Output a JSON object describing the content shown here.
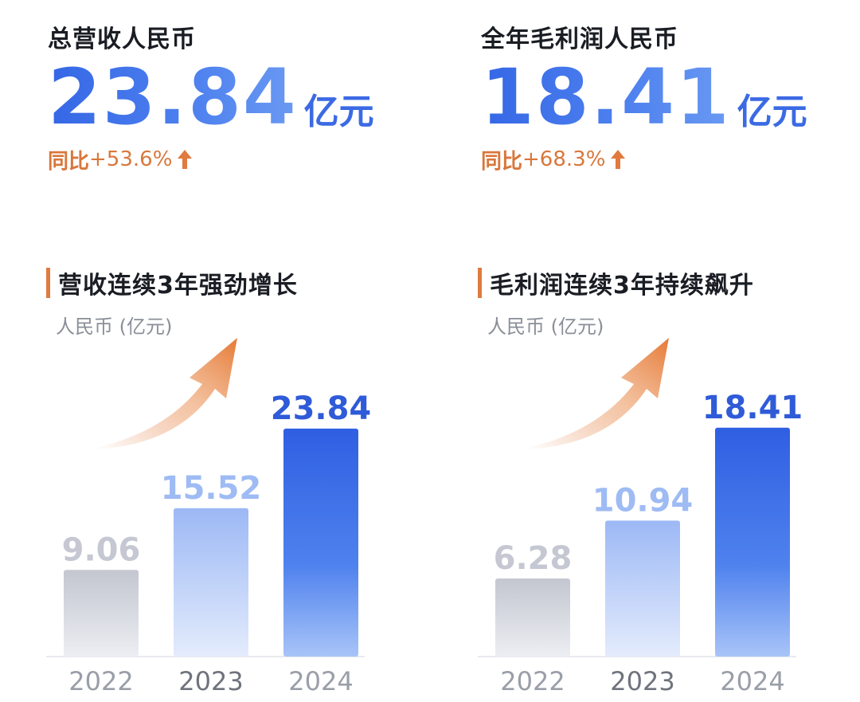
{
  "kpis": [
    {
      "label": "总营收人民币",
      "value": "23.84",
      "unit": "亿元",
      "yoy_label": "同比",
      "yoy_value": "+53.6%",
      "arrow_icon": "up-arrow"
    },
    {
      "label": "全年毛利润人民币",
      "value": "18.41",
      "unit": "亿元",
      "yoy_label": "同比",
      "yoy_value": "+68.3%",
      "arrow_icon": "up-arrow"
    }
  ],
  "colors": {
    "accent_blue": "#3567e6",
    "accent_orange": "#e07a3f",
    "bar_gray": "#c9ccd6",
    "bar_light_blue": "#9fbcf6"
  },
  "chart_data": [
    {
      "type": "bar",
      "title": "营收连续3年强劲增长",
      "ylabel": "人民币 (亿元)",
      "categories": [
        "2022",
        "2023",
        "2024"
      ],
      "values": [
        9.06,
        15.52,
        23.84
      ],
      "value_labels": [
        "9.06",
        "15.52",
        "23.84"
      ],
      "ylim": [
        0,
        26
      ],
      "grid": false,
      "legend": "none"
    },
    {
      "type": "bar",
      "title": "毛利润连续3年持续飙升",
      "ylabel": "人民币 (亿元)",
      "categories": [
        "2022",
        "2023",
        "2024"
      ],
      "values": [
        6.28,
        10.94,
        18.41
      ],
      "value_labels": [
        "6.28",
        "10.94",
        "18.41"
      ],
      "ylim": [
        0,
        20
      ],
      "grid": false,
      "legend": "none"
    }
  ]
}
